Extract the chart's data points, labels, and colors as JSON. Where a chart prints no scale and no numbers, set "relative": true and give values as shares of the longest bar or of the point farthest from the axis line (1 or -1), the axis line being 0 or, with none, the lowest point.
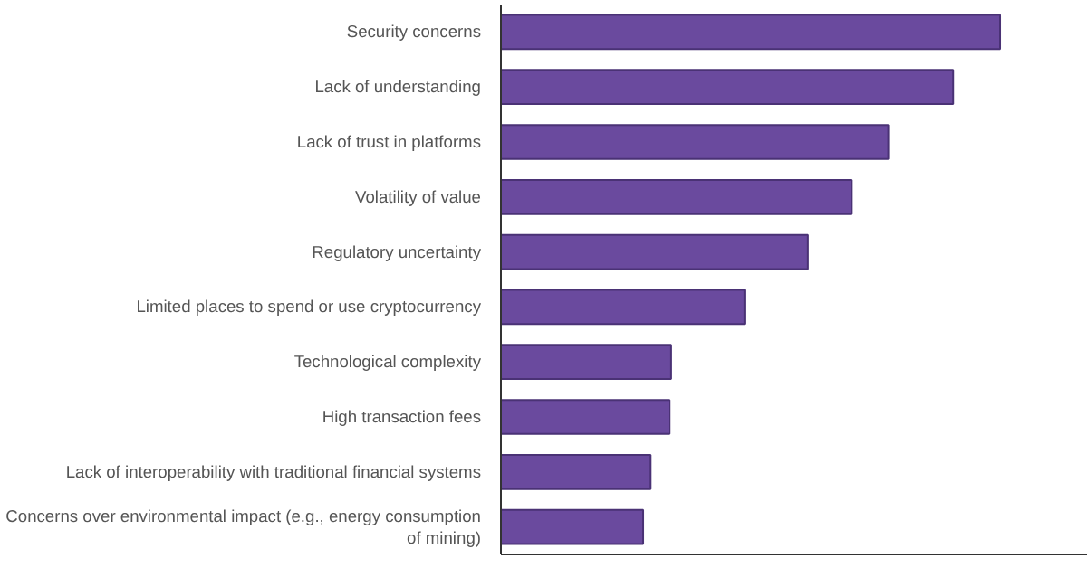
{
  "chart_data": {
    "type": "bar",
    "orientation": "horizontal",
    "relative": true,
    "categories": [
      "Security concerns",
      "Lack of understanding",
      "Lack of trust in platforms",
      "Volatility of value",
      "Regulatory uncertainty",
      "Limited places to spend or use cryptocurrency",
      "Technological complexity",
      "High transaction fees",
      "Lack of interoperability with traditional financial systems",
      "Concerns over environmental impact (e.g., energy consumption of mining)"
    ],
    "values": [
      1,
      0.906,
      0.776,
      0.703,
      0.615,
      0.488,
      0.341,
      0.338,
      0.3,
      0.285
    ],
    "color": "#6a4a9e",
    "grid": false
  }
}
